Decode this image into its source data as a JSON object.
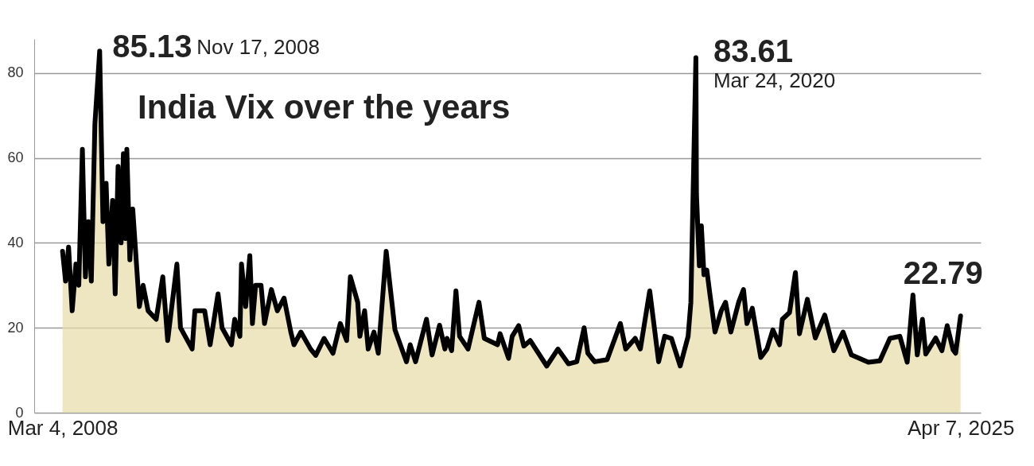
{
  "chart_data": {
    "type": "area",
    "title": "India Vix over the years",
    "annotations": [
      {
        "text": "85.13",
        "x": "2008-11-17",
        "y": 85.13
      },
      "Nov 17, 2008",
      {
        "text": "83.61",
        "x": "2020-03-24",
        "y": 83.61
      },
      "Mar 24, 2020",
      {
        "text": "22.79",
        "x": "2025-04-07",
        "y": 22.79
      }
    ],
    "x": [
      "2008-03-04",
      "2008-03-25",
      "2008-04-15",
      "2008-05-10",
      "2008-06-05",
      "2008-06-25",
      "2008-07-20",
      "2008-08-10",
      "2008-08-30",
      "2008-09-20",
      "2008-10-15",
      "2008-11-17",
      "2008-12-10",
      "2009-01-01",
      "2009-01-20",
      "2009-02-15",
      "2009-03-05",
      "2009-03-25",
      "2009-04-15",
      "2009-05-01",
      "2009-05-15",
      "2009-05-25",
      "2009-06-15",
      "2009-07-05",
      "2009-08-20",
      "2009-09-15",
      "2009-10-20",
      "2009-12-15",
      "2010-01-30",
      "2010-03-05",
      "2010-05-08",
      "2010-06-02",
      "2010-08-22",
      "2010-09-10",
      "2010-11-17",
      "2010-12-25",
      "2011-02-18",
      "2011-03-18",
      "2011-05-22",
      "2011-06-14",
      "2011-07-20",
      "2011-07-31",
      "2011-08-29",
      "2011-09-27",
      "2011-10-15",
      "2011-11-06",
      "2011-12-14",
      "2012-01-07",
      "2012-02-24",
      "2012-04-05",
      "2012-05-22",
      "2012-07-08",
      "2012-07-30",
      "2012-09-16",
      "2012-11-22",
      "2012-12-28",
      "2013-02-24",
      "2013-04-27",
      "2013-06-17",
      "2013-07-31",
      "2013-08-26",
      "2013-10-16",
      "2013-10-31",
      "2013-12-03",
      "2013-12-28",
      "2014-02-06",
      "2014-03-08",
      "2014-05-02",
      "2014-07-02",
      "2014-09-20",
      "2014-10-16",
      "2014-11-22",
      "2015-02-06",
      "2015-03-17",
      "2015-05-08",
      "2015-06-14",
      "2015-06-29",
      "2015-07-31",
      "2015-08-30",
      "2015-09-24",
      "2015-11-22",
      "2016-02-06",
      "2016-03-14",
      "2016-06-14",
      "2016-07-02",
      "2016-08-30",
      "2016-09-24",
      "2016-11-08",
      "2016-12-14",
      "2017-01-27",
      "2017-05-22",
      "2017-08-08",
      "2017-10-20",
      "2017-12-17",
      "2018-02-06",
      "2018-03-04",
      "2018-04-20",
      "2018-07-16",
      "2018-10-16",
      "2018-11-22",
      "2019-01-27",
      "2019-03-04",
      "2019-05-08",
      "2019-07-09",
      "2019-08-20",
      "2019-10-06",
      "2019-12-06",
      "2020-01-30",
      "2020-02-18",
      "2020-03-24",
      "2020-03-28",
      "2020-04-17",
      "2020-05-01",
      "2020-05-19",
      "2020-06-08",
      "2020-06-29",
      "2020-08-04",
      "2020-09-16",
      "2020-10-16",
      "2020-11-22",
      "2021-01-15",
      "2021-02-18",
      "2021-03-14",
      "2021-04-20",
      "2021-06-18",
      "2021-07-31",
      "2021-09-10",
      "2021-10-27",
      "2021-11-15",
      "2022-01-04",
      "2022-02-14",
      "2022-03-14",
      "2022-05-08",
      "2022-07-02",
      "2022-09-06",
      "2022-11-08",
      "2023-01-11",
      "2023-03-10",
      "2023-07-06",
      "2023-09-24",
      "2023-12-03",
      "2024-02-10",
      "2024-04-01",
      "2024-05-11",
      "2024-06-10",
      "2024-07-16",
      "2024-08-08",
      "2024-10-16",
      "2024-11-28",
      "2025-01-04",
      "2025-02-14",
      "2025-03-04",
      "2025-04-07"
    ],
    "values": [
      38,
      31,
      39,
      24,
      35,
      30,
      62,
      32,
      45,
      31,
      68,
      85.13,
      45,
      54,
      35,
      50,
      28,
      58,
      40,
      61,
      41,
      62,
      36,
      48,
      25,
      30,
      24,
      22,
      32,
      17,
      35,
      20,
      15,
      24,
      24,
      16,
      28,
      20,
      16,
      22,
      18,
      35,
      25,
      37,
      21,
      30,
      30,
      21,
      29,
      24,
      27,
      19,
      16,
      19,
      15,
      13.5,
      17.5,
      14,
      21,
      17,
      32,
      26,
      18,
      24,
      15,
      19,
      14,
      38,
      19.5,
      12,
      16,
      12,
      22,
      13.6,
      20.6,
      15,
      17.5,
      14.6,
      28.7,
      18,
      15,
      26,
      17.5,
      16,
      18.6,
      12.8,
      18,
      20.5,
      15.7,
      17,
      11,
      15,
      11.5,
      12,
      20,
      14,
      12,
      12.5,
      21,
      15,
      17.5,
      15,
      28.7,
      12,
      18,
      17.5,
      11,
      18,
      26,
      83.61,
      51.5,
      34.6,
      44,
      32.5,
      33.6,
      28,
      19,
      24,
      26,
      19,
      26,
      29,
      21,
      24.6,
      13,
      15,
      19.5,
      16,
      22,
      23.6,
      33,
      18.6,
      26.7,
      17.6,
      23,
      14.6,
      19,
      13.6,
      11.9,
      12.2,
      17.5,
      18,
      11.9,
      27.7,
      13.6,
      22,
      13.8,
      17.6,
      14.6,
      20.5,
      14.8,
      14,
      22.79
    ],
    "color": "#e6dca6",
    "xlim": [
      "2007-08-20",
      "2025-08-25"
    ],
    "xticks": [
      {
        "value": "2008-03-04",
        "label": "Mar 4, 2008"
      },
      {
        "value": "2025-04-07",
        "label": "Apr 7, 2025"
      }
    ],
    "ylim": [
      0,
      88
    ],
    "yticks": [
      0,
      20,
      40,
      60,
      80
    ],
    "grid": "y",
    "line_style": "solid"
  }
}
